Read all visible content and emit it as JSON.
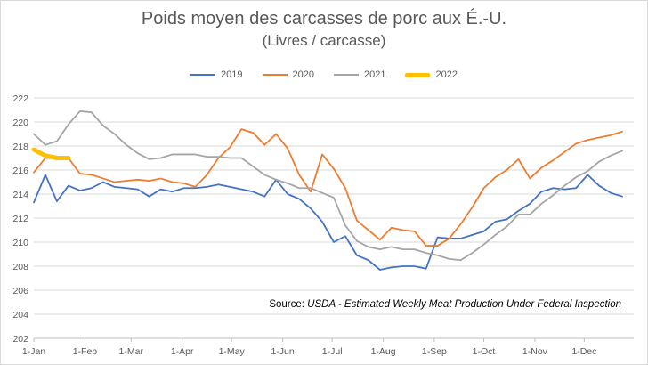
{
  "chart_data": {
    "type": "line",
    "title": "Poids moyen des carcasses de porc aux É.-U.",
    "subtitle": "(Livres / carcasse)",
    "xlabel": "",
    "ylabel": "",
    "ylim": [
      202,
      222
    ],
    "yticks": [
      202,
      204,
      206,
      208,
      210,
      212,
      214,
      216,
      218,
      220,
      222
    ],
    "xlim": [
      0,
      52
    ],
    "xticks": [
      {
        "label": "1-Jan",
        "x": 0
      },
      {
        "label": "1-Feb",
        "x": 4.43
      },
      {
        "label": "1-Mar",
        "x": 8.43
      },
      {
        "label": "1-Apr",
        "x": 12.86
      },
      {
        "label": "1-May",
        "x": 17.14
      },
      {
        "label": "1-Jun",
        "x": 21.57
      },
      {
        "label": "1-Jul",
        "x": 25.86
      },
      {
        "label": "1-Aug",
        "x": 30.29
      },
      {
        "label": "1-Sep",
        "x": 34.71
      },
      {
        "label": "1-Oct",
        "x": 39
      },
      {
        "label": "1-Nov",
        "x": 43.43
      },
      {
        "label": "1-Dec",
        "x": 47.71
      }
    ],
    "grid": true,
    "legend_position": "top",
    "series": [
      {
        "name": "2019",
        "color": "#4472c4",
        "width": 1.8,
        "values": [
          213.3,
          215.6,
          213.4,
          214.7,
          214.3,
          214.5,
          215.0,
          214.6,
          214.5,
          214.4,
          213.8,
          214.4,
          214.2,
          214.5,
          214.5,
          214.6,
          214.8,
          214.6,
          214.4,
          214.2,
          213.8,
          215.2,
          214.0,
          213.6,
          212.8,
          211.7,
          210.0,
          210.5,
          208.9,
          208.5,
          207.7,
          207.9,
          208.0,
          208.0,
          207.8,
          210.4,
          210.3,
          210.3,
          210.6,
          210.9,
          211.7,
          211.9,
          212.6,
          213.2,
          214.2,
          214.5,
          214.4,
          214.5,
          215.6,
          214.7,
          214.1,
          213.8
        ]
      },
      {
        "name": "2020",
        "color": "#ed7d31",
        "width": 1.8,
        "values": [
          215.8,
          217.0,
          217.0,
          217.0,
          215.7,
          215.6,
          215.3,
          215.0,
          215.1,
          215.2,
          215.1,
          215.3,
          215.0,
          214.9,
          214.6,
          215.6,
          217.0,
          217.9,
          219.4,
          219.1,
          218.1,
          219.0,
          217.8,
          215.6,
          214.2,
          217.3,
          216.1,
          214.5,
          211.8,
          211.0,
          210.2,
          211.2,
          211.0,
          210.9,
          209.7,
          209.7,
          210.3,
          211.5,
          212.9,
          214.5,
          215.4,
          216.0,
          216.9,
          215.3,
          216.2,
          216.8,
          217.5,
          218.2,
          218.5,
          218.7,
          218.9,
          219.2
        ]
      },
      {
        "name": "2021",
        "color": "#a5a5a5",
        "width": 1.8,
        "values": [
          219.0,
          218.1,
          218.4,
          219.8,
          220.9,
          220.8,
          219.7,
          219.0,
          218.1,
          217.4,
          216.9,
          217.0,
          217.3,
          217.3,
          217.3,
          217.1,
          217.1,
          217.0,
          217.0,
          216.3,
          215.6,
          215.2,
          214.9,
          214.5,
          214.5,
          214.1,
          213.7,
          211.4,
          210.1,
          209.6,
          209.4,
          209.6,
          209.4,
          209.4,
          209.1,
          208.9,
          208.6,
          208.5,
          209.1,
          209.8,
          210.6,
          211.3,
          212.3,
          212.3,
          213.2,
          213.9,
          214.7,
          215.4,
          215.9,
          216.7,
          217.2,
          217.6
        ]
      },
      {
        "name": "2022",
        "color": "#ffc000",
        "width": 5,
        "values": [
          217.7,
          217.2,
          217.0,
          217.0
        ]
      }
    ],
    "annotation": {
      "prefix": "Source: ",
      "text": "USDA - Estimated Weekly Meat Production Under Federal Inspection"
    }
  }
}
